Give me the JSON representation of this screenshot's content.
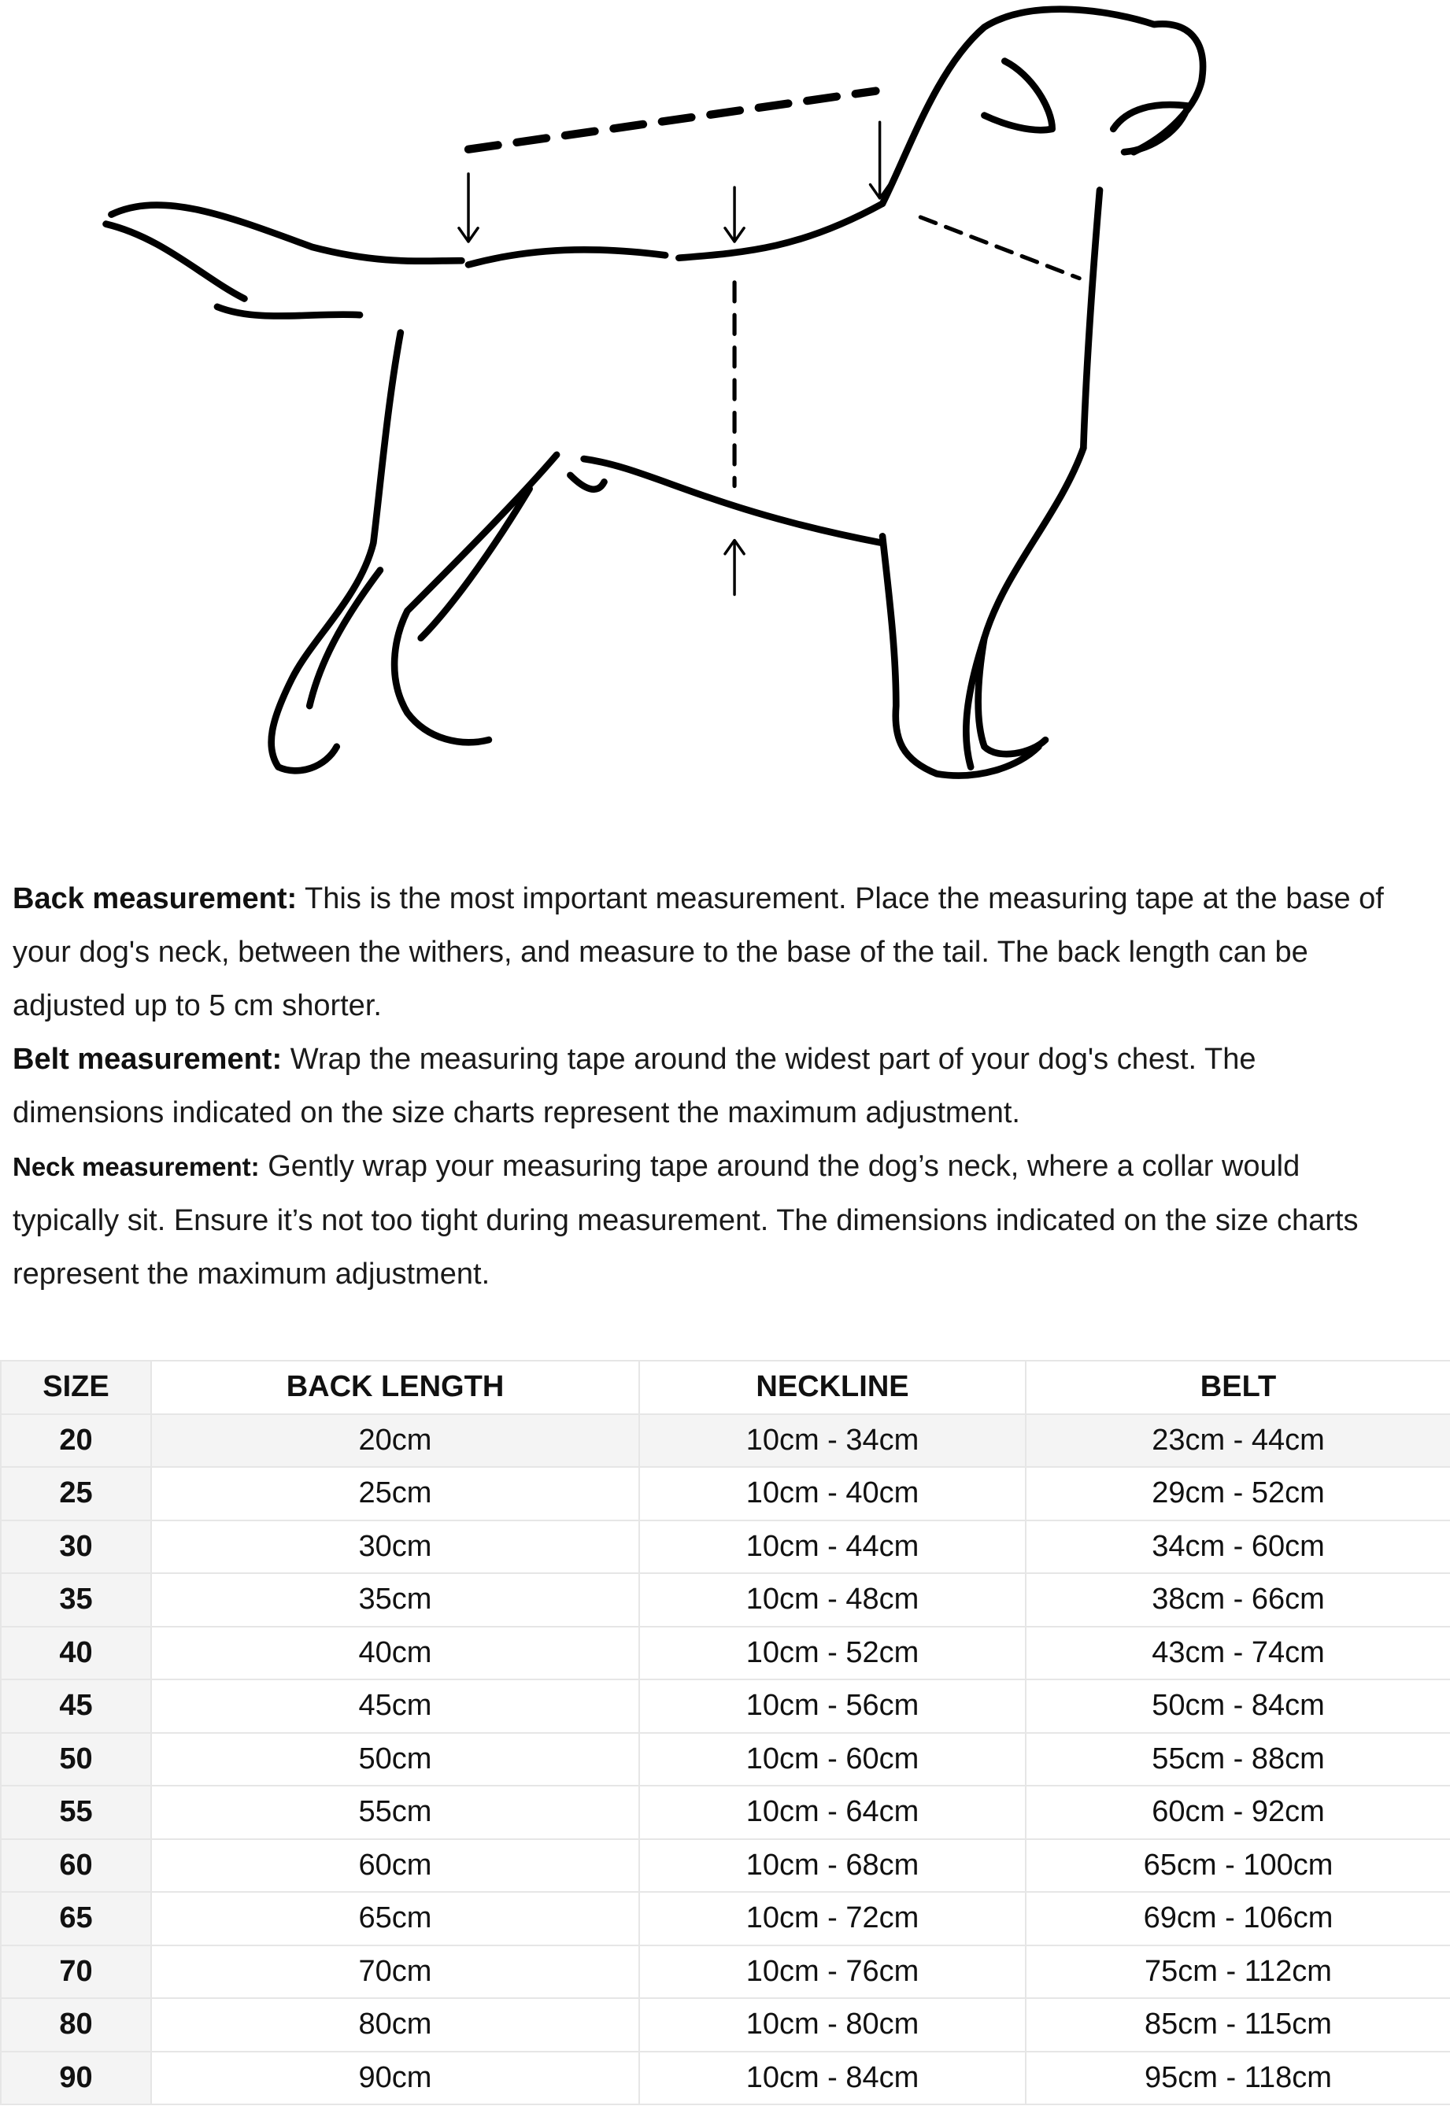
{
  "illustration": {
    "subject": "dog-outline-with-measurement-lines"
  },
  "descriptions": [
    {
      "label": "Back measurement:",
      "text": "This is the most important measurement. Place the measuring tape at the base of your dog's neck, between the withers, and measure to the base of the tail. The back length can be adjusted up to 5 cm shorter."
    },
    {
      "label": "Belt measurement:",
      "text": "Wrap the measuring tape around the widest part of your dog's chest. The dimensions indicated on the size charts represent the maximum adjustment."
    },
    {
      "label": "Neck measurement:",
      "text": "Gently wrap your measuring tape around the dog’s neck, where a collar would typically sit. Ensure it’s not too tight during measurement. The dimensions indicated on the size charts represent the maximum adjustment."
    }
  ],
  "table": {
    "headers": [
      "SIZE",
      "BACK LENGTH",
      "NECKLINE",
      "BELT"
    ],
    "rows": [
      [
        "20",
        "20cm",
        "10cm - 34cm",
        "23cm - 44cm"
      ],
      [
        "25",
        "25cm",
        "10cm - 40cm",
        "29cm - 52cm"
      ],
      [
        "30",
        "30cm",
        "10cm - 44cm",
        "34cm - 60cm"
      ],
      [
        "35",
        "35cm",
        "10cm - 48cm",
        "38cm - 66cm"
      ],
      [
        "40",
        "40cm",
        "10cm - 52cm",
        "43cm - 74cm"
      ],
      [
        "45",
        "45cm",
        "10cm - 56cm",
        "50cm - 84cm"
      ],
      [
        "50",
        "50cm",
        "10cm - 60cm",
        "55cm - 88cm"
      ],
      [
        "55",
        "55cm",
        "10cm - 64cm",
        "60cm - 92cm"
      ],
      [
        "60",
        "60cm",
        "10cm - 68cm",
        "65cm - 100cm"
      ],
      [
        "65",
        "65cm",
        "10cm - 72cm",
        "69cm - 106cm"
      ],
      [
        "70",
        "70cm",
        "10cm - 76cm",
        "75cm - 112cm"
      ],
      [
        "80",
        "80cm",
        "10cm - 80cm",
        "85cm - 115cm"
      ],
      [
        "90",
        "90cm",
        "10cm - 84cm",
        "95cm - 118cm"
      ]
    ]
  }
}
